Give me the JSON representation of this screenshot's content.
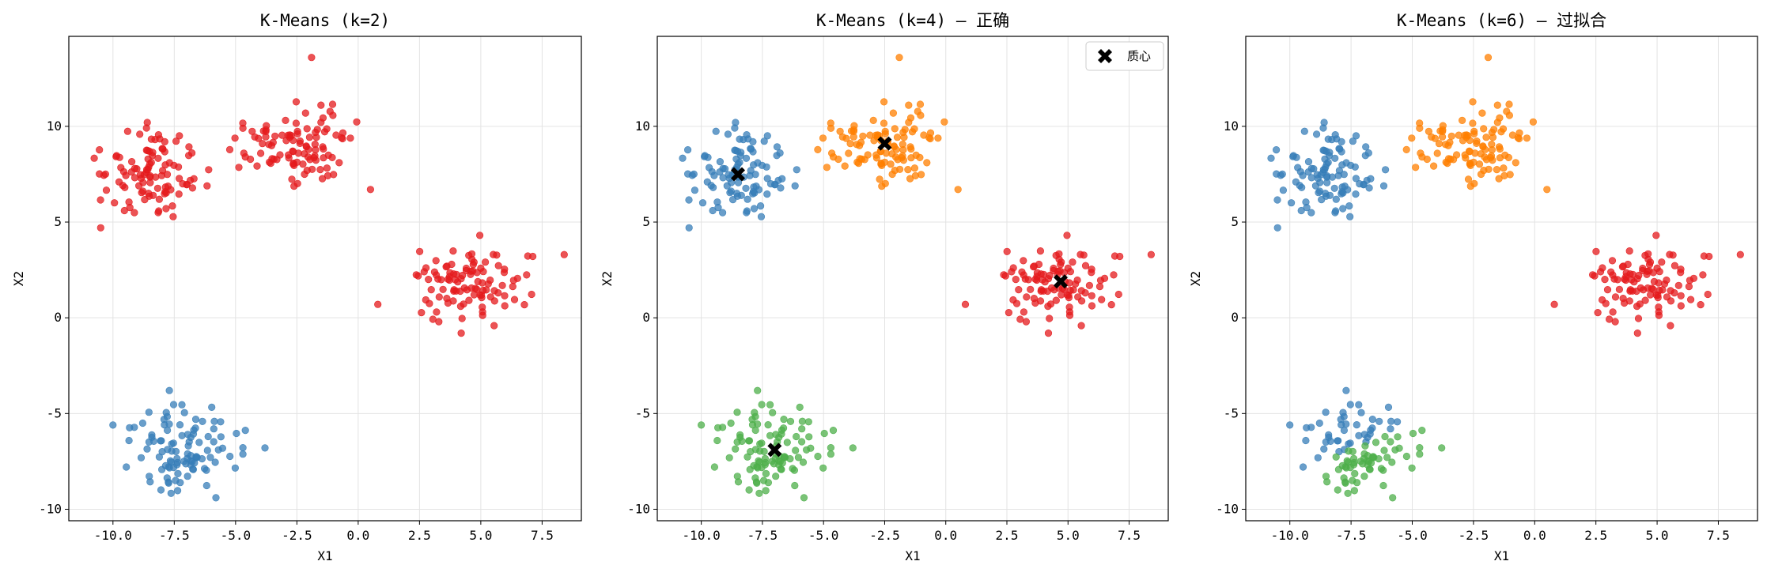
{
  "chart_data": [
    {
      "type": "scatter",
      "title": "K-Means (k=2)",
      "xlabel": "X1",
      "ylabel": "X2",
      "xlim": [
        -11.8,
        9.1
      ],
      "ylim": [
        -10.6,
        14.7
      ],
      "xticks": [
        -10.0,
        -7.5,
        -5.0,
        -2.5,
        0.0,
        2.5,
        5.0,
        7.5
      ],
      "yticks": [
        -10,
        -5,
        0,
        5,
        10
      ],
      "grid": true,
      "legend": null,
      "clusters": [
        {
          "color": "#e41a1c",
          "blobs": [
            "A",
            "B",
            "C"
          ]
        },
        {
          "color": "#377eb8",
          "blobs": [
            "D"
          ]
        }
      ],
      "centroids": []
    },
    {
      "type": "scatter",
      "title": "K-Means (k=4) — 正确",
      "xlabel": "X1",
      "ylabel": "X2",
      "xlim": [
        -11.8,
        9.1
      ],
      "ylim": [
        -10.6,
        14.7
      ],
      "xticks": [
        -10.0,
        -7.5,
        -5.0,
        -2.5,
        0.0,
        2.5,
        5.0,
        7.5
      ],
      "yticks": [
        -10,
        -5,
        0,
        5,
        10
      ],
      "grid": true,
      "legend": {
        "position": "upper-right",
        "entries": [
          "质心"
        ]
      },
      "clusters": [
        {
          "color": "#377eb8",
          "blobs": [
            "A"
          ]
        },
        {
          "color": "#ff7f00",
          "blobs": [
            "B"
          ]
        },
        {
          "color": "#e41a1c",
          "blobs": [
            "C"
          ]
        },
        {
          "color": "#4daf4a",
          "blobs": [
            "D"
          ]
        }
      ],
      "centroids": [
        {
          "x": -8.5,
          "y": 7.5
        },
        {
          "x": -2.5,
          "y": 9.1
        },
        {
          "x": 4.7,
          "y": 1.9
        },
        {
          "x": -7.0,
          "y": -6.9
        }
      ]
    },
    {
      "type": "scatter",
      "title": "K-Means (k=6) — 过拟合",
      "xlabel": "X1",
      "ylabel": "X2",
      "xlim": [
        -11.8,
        9.1
      ],
      "ylim": [
        -10.6,
        14.7
      ],
      "xticks": [
        -10.0,
        -7.5,
        -5.0,
        -2.5,
        0.0,
        2.5,
        5.0,
        7.5
      ],
      "yticks": [
        -10,
        -5,
        0,
        5,
        10
      ],
      "grid": true,
      "legend": null,
      "clusters": [
        {
          "color": "#377eb8",
          "blobs": [
            "A"
          ]
        },
        {
          "color": "#ff7f00",
          "blobs": [
            "B"
          ]
        },
        {
          "color": "#e41a1c",
          "blobs": [
            "C"
          ]
        },
        {
          "color": "#377eb8",
          "blobs": [
            "D-upper"
          ]
        },
        {
          "color": "#4daf4a",
          "blobs": [
            "D-lower"
          ]
        }
      ],
      "centroids": []
    }
  ],
  "blobs": {
    "A": {
      "center": [
        -8.5,
        7.5
      ],
      "spread": [
        1.05,
        1.05
      ],
      "count": 100,
      "outliers": [
        [
          -10.5,
          4.7
        ],
        [
          -8.6,
          10.2
        ]
      ]
    },
    "B": {
      "center": [
        -2.5,
        9.1
      ],
      "spread": [
        1.2,
        1.05
      ],
      "count": 100,
      "outliers": [
        [
          -1.9,
          13.6
        ],
        [
          0.5,
          6.7
        ],
        [
          -4.7,
          9.9
        ]
      ]
    },
    "C": {
      "center": [
        4.7,
        1.9
      ],
      "spread": [
        1.25,
        1.05
      ],
      "count": 100,
      "outliers": [
        [
          0.8,
          0.7
        ],
        [
          8.4,
          3.3
        ],
        [
          4.2,
          -0.8
        ]
      ]
    },
    "D": {
      "center": [
        -7.0,
        -6.9
      ],
      "spread": [
        1.15,
        1.05
      ],
      "count": 100,
      "outliers": [
        [
          -3.8,
          -6.8
        ],
        [
          -7.7,
          -3.8
        ],
        [
          -10.0,
          -5.6
        ],
        [
          -5.8,
          -9.4
        ]
      ]
    }
  },
  "legend_label": "质心"
}
